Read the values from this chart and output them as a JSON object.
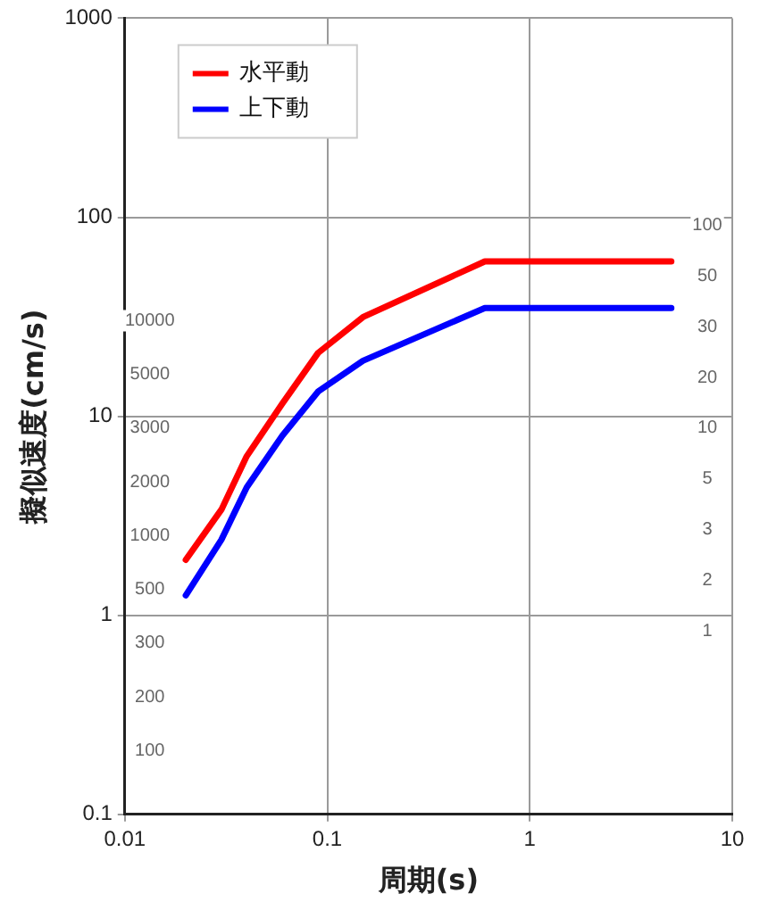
{
  "chart_data": {
    "type": "line",
    "xlabel": "周期(s)",
    "ylabel": "擬似速度(cm/s)",
    "log": "xy",
    "grid": true,
    "legend": "top left",
    "marker": "none",
    "line_style": "solid",
    "xlim": [
      0.01,
      10
    ],
    "xticks": [
      0.01,
      0.1,
      1,
      10
    ],
    "ylim": [
      0.1,
      1000
    ],
    "yticks": [
      0.1,
      1,
      10,
      100,
      1000
    ],
    "series": [
      {
        "name": "水平動",
        "color": "#ff0000",
        "x": [
          0.02,
          0.03,
          0.04,
          0.06,
          0.09,
          0.15,
          0.6,
          5
        ],
        "values": [
          1.9,
          3.4,
          6.3,
          11.6,
          20.8,
          31.5,
          60,
          60
        ]
      },
      {
        "name": "上下動",
        "color": "#0000ff",
        "x": [
          0.02,
          0.03,
          0.04,
          0.06,
          0.09,
          0.15,
          0.6,
          5
        ],
        "values": [
          1.26,
          2.4,
          4.4,
          8,
          13.3,
          19,
          35,
          35
        ]
      }
    ],
    "annotations": [
      "10000",
      "5000",
      "3000",
      "2000",
      "1000",
      "500",
      "300",
      "200",
      "100",
      "100",
      "50",
      "30",
      "20",
      "10",
      "5",
      "3",
      "2",
      "1"
    ]
  }
}
